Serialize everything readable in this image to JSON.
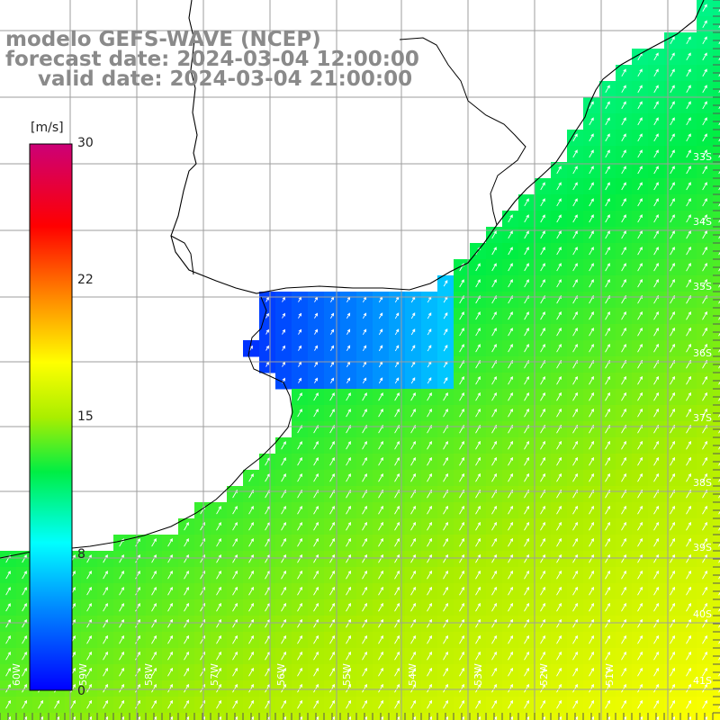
{
  "header": {
    "model_line": "modelo GEFS-WAVE (NCEP)",
    "forecast_line": "forecast date: 2024-03-04 12:00:00",
    "valid_line": "valid date: 2024-03-04 21:00:00"
  },
  "colorbar": {
    "unit": "[m/s]",
    "ticks": [
      "30",
      "22",
      "15",
      "8",
      "0"
    ],
    "min": 0,
    "max": 30
  },
  "map": {
    "lat_labels": [
      "33S",
      "34S",
      "35S",
      "36S",
      "37S",
      "38S",
      "39S",
      "40S",
      "41S"
    ],
    "lon_labels": [
      "60W",
      "59W",
      "58W",
      "57W",
      "56W",
      "55W",
      "54W",
      "53W",
      "52W",
      "51W"
    ],
    "field": "wind speed",
    "prevailing_direction": "from SW (arrows point NE)",
    "colors": {
      "land": "#ffffff",
      "grid": "#9e9e9e",
      "coast": "#000000",
      "arrows": "#ffffff"
    }
  }
}
